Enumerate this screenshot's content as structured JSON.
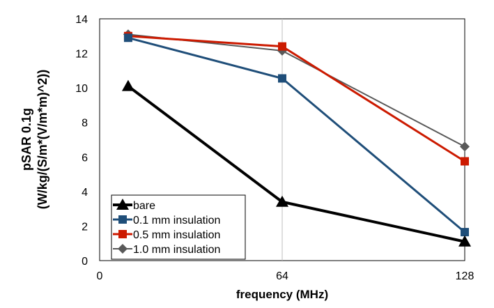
{
  "chart_data": {
    "type": "line",
    "title": "",
    "xlabel": "frequency (MHz)",
    "ylabel": "pSAR 0.1g",
    "ylabel2": "(W/kg/(S/m*(V/m*m)^2))",
    "xlim": [
      0,
      128
    ],
    "ylim": [
      0,
      14
    ],
    "x_ticks": [
      0,
      64,
      128
    ],
    "y_ticks": [
      0,
      2,
      4,
      6,
      8,
      10,
      12,
      14
    ],
    "grid": "vertical",
    "legend_position": "bottom-left",
    "x": [
      10,
      64,
      128
    ],
    "series": [
      {
        "name": "bare",
        "values": [
          10.1,
          3.4,
          1.1
        ],
        "color": "#000000",
        "marker": "triangle"
      },
      {
        "name": "0.1 mm insulation",
        "values": [
          12.9,
          10.55,
          1.65
        ],
        "color": "#1f4e79",
        "marker": "square"
      },
      {
        "name": "0.5 mm insulation",
        "values": [
          13.0,
          12.4,
          5.75
        ],
        "color": "#cc1a00",
        "marker": "square"
      },
      {
        "name": "1.0 mm insulation",
        "values": [
          13.1,
          12.15,
          6.6
        ],
        "color": "#595959",
        "marker": "diamond"
      }
    ]
  }
}
